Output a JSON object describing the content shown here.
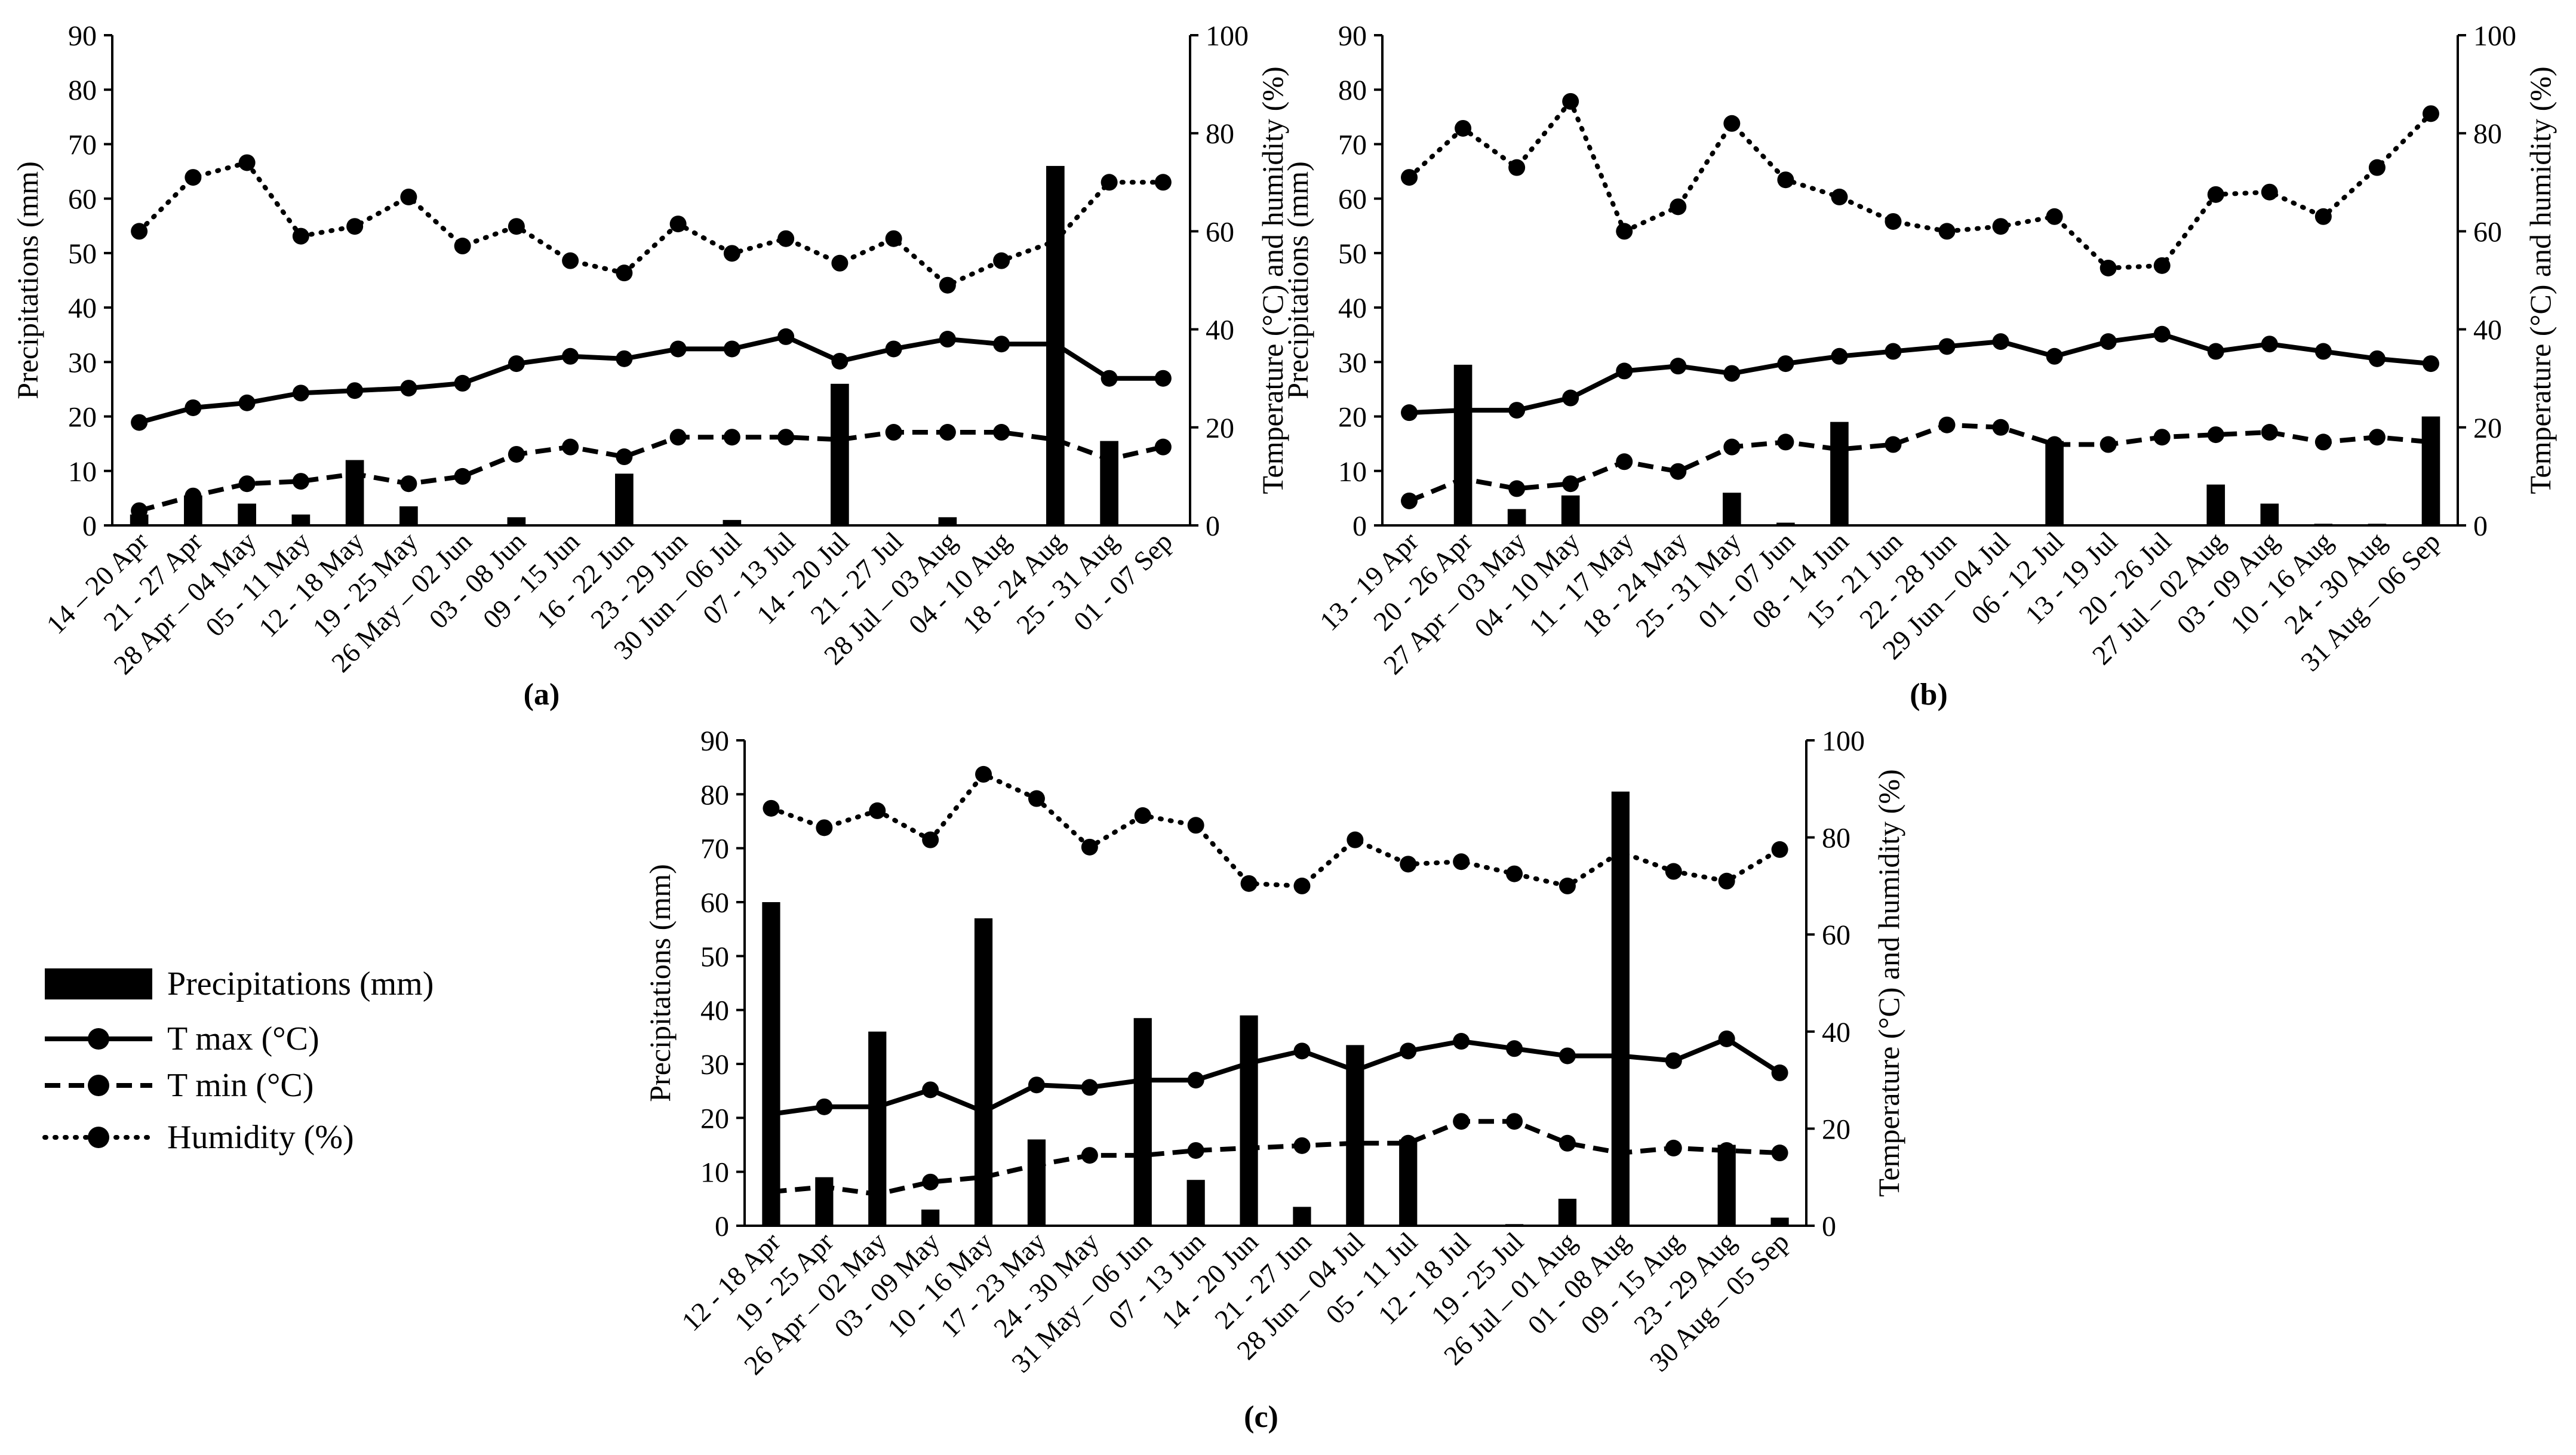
{
  "chart_data": [
    {
      "type": "bar+line",
      "panel_label": "(a)",
      "ylabel_left": "Precipitations (mm)",
      "ylabel_right": "Temperature (°C) and humidity (%)",
      "ylim_left": [
        0,
        90
      ],
      "ylim_right": [
        0,
        100
      ],
      "yticks_left": [
        "0",
        "10",
        "20",
        "30",
        "40",
        "50",
        "60",
        "70",
        "80",
        "90"
      ],
      "yticks_right": [
        "0",
        "20",
        "40",
        "60",
        "80",
        "100"
      ],
      "categories": [
        "14 – 20 Apr",
        "21 - 27 Apr",
        "28 Apr – 04 May",
        "05 - 11 May",
        "12 - 18 May",
        "19 - 25 May",
        "26 May – 02 Jun",
        "03 - 08 Jun",
        "09 - 15 Jun",
        "16 - 22 Jun",
        "23 - 29 Jun",
        "30 Jun – 06 Jul",
        "07 - 13 Jul",
        "14 - 20 Jul",
        "21 - 27 Jul",
        "28 Jul – 03 Aug",
        "04 - 10 Aug",
        "18 - 24 Aug",
        "25 - 31 Aug",
        "01 - 07 Sep"
      ],
      "precipitation": [
        2,
        5.5,
        4,
        2,
        12,
        3.5,
        0.2,
        1.5,
        0,
        9.5,
        0,
        1,
        0,
        26,
        0,
        1.5,
        0,
        66,
        15.5,
        0.2
      ],
      "tmax": [
        21,
        24,
        25,
        27,
        27.5,
        28,
        29,
        33,
        34.5,
        34,
        36,
        36,
        38.5,
        33.5,
        36,
        38,
        37,
        37,
        30,
        30
      ],
      "tmin": [
        3,
        6,
        8.5,
        9,
        10.5,
        8.5,
        10,
        14.5,
        16,
        14,
        18,
        18,
        18,
        17.5,
        19,
        19,
        19,
        17.5,
        13.5,
        16
      ],
      "humidity": [
        60,
        71,
        74,
        59,
        61,
        67,
        57,
        61,
        54,
        51.5,
        61.5,
        55.5,
        58.5,
        53.5,
        58.5,
        49,
        54,
        58,
        70,
        70
      ]
    },
    {
      "type": "bar+line",
      "panel_label": "(b)",
      "ylabel_left": "Precipitations (mm)",
      "ylabel_right": "Temperature (°C) and humidity (%)",
      "ylim_left": [
        0,
        90
      ],
      "ylim_right": [
        0,
        100
      ],
      "yticks_left": [
        "0",
        "10",
        "20",
        "30",
        "40",
        "50",
        "60",
        "70",
        "80",
        "90"
      ],
      "yticks_right": [
        "0",
        "20",
        "40",
        "60",
        "80",
        "100"
      ],
      "categories": [
        "13 - 19 Apr",
        "20 - 26 Apr",
        "27 Apr – 03 May",
        "04 - 10 May",
        "11 - 17 May",
        "18 - 24 May",
        "25 - 31 May",
        "01 - 07 Jun",
        "08 - 14 Jun",
        "15 - 21 Jun",
        "22 - 28 Jun",
        "29 Jun – 04 Jul",
        "06 - 12 Jul",
        "13 - 19 Jul",
        "20 - 26 Jul",
        "27 Jul – 02 Aug",
        "03 - 09 Aug",
        "10 - 16 Aug",
        "24 - 30 Aug",
        "31 Aug – 06 Sep"
      ],
      "precipitation": [
        0,
        29.5,
        3,
        5.5,
        0,
        0,
        6,
        0.5,
        19,
        0,
        0,
        0,
        15.5,
        0,
        0,
        7.5,
        4,
        0.3,
        0.3,
        20
      ],
      "tmax": [
        23,
        23.5,
        23.5,
        26,
        31.5,
        32.5,
        31,
        33,
        34.5,
        35.5,
        36.5,
        37.5,
        34.5,
        37.5,
        39,
        35.5,
        37,
        35.5,
        34,
        33
      ],
      "tmin": [
        5,
        9.5,
        7.5,
        8.5,
        13,
        11,
        16,
        17,
        15.5,
        16.5,
        20.5,
        20,
        16.5,
        16.5,
        18,
        18.5,
        19,
        17,
        18,
        17
      ],
      "humidity": [
        71,
        81,
        73,
        86.5,
        60,
        65,
        82,
        70.5,
        67,
        62,
        60,
        61,
        63,
        52.5,
        53,
        67.5,
        68,
        63,
        73,
        84
      ]
    },
    {
      "type": "bar+line",
      "panel_label": "(c)",
      "ylabel_left": "Precipitations (mm)",
      "ylabel_right": "Temperature (°C) and humidity (%)",
      "ylim_left": [
        0,
        90
      ],
      "ylim_right": [
        0,
        100
      ],
      "yticks_left": [
        "0",
        "10",
        "20",
        "30",
        "40",
        "50",
        "60",
        "70",
        "80",
        "90"
      ],
      "yticks_right": [
        "0",
        "20",
        "40",
        "60",
        "80",
        "100"
      ],
      "categories": [
        "12 - 18 Apr",
        "19 - 25 Apr",
        "26 Apr – 02 May",
        "03 - 09 May",
        "10 - 16 May",
        "17 - 23 May",
        "24 - 30 May",
        "31 May – 06 Jun",
        "07 - 13 Jun",
        "14 - 20 Jun",
        "21 - 27 Jun",
        "28 Jun – 04 Jul",
        "05 - 11 Jul",
        "12 - 18 Jul",
        "19 - 25 Jul",
        "26 Jul – 01 Aug",
        "01 - 08 Aug",
        "09 - 15 Aug",
        "23 - 29 Aug",
        "30 Aug – 05 Sep"
      ],
      "precipitation": [
        60,
        9,
        36,
        3,
        57,
        16,
        0,
        38.5,
        8.5,
        39,
        3.5,
        33.5,
        16,
        0,
        0.3,
        5,
        80.5,
        0,
        15,
        1.5
      ],
      "tmax": [
        23,
        24.5,
        24.5,
        28,
        23.5,
        29,
        28.5,
        30,
        30,
        33.5,
        36,
        32,
        36,
        38,
        36.5,
        35,
        35,
        34,
        38.5,
        31.5
      ],
      "tmin": [
        7,
        8,
        6.5,
        9,
        10,
        12.5,
        14.5,
        14.5,
        15.5,
        16,
        16.5,
        17,
        17,
        21.5,
        21.5,
        17,
        15,
        16,
        15.5,
        15
      ],
      "humidity": [
        86,
        82,
        85.5,
        79.5,
        93,
        88,
        78,
        84.5,
        82.5,
        70.5,
        70,
        79.5,
        74.5,
        75,
        72.5,
        70,
        77,
        73,
        71,
        77.5
      ]
    }
  ],
  "legend": {
    "items": [
      {
        "key": "precipitation",
        "label": "Precipitations (mm)"
      },
      {
        "key": "tmax",
        "label": "T max (°C)"
      },
      {
        "key": "tmin",
        "label": "T min (°C)"
      },
      {
        "key": "humidity",
        "label": "Humidity (%)"
      }
    ]
  }
}
